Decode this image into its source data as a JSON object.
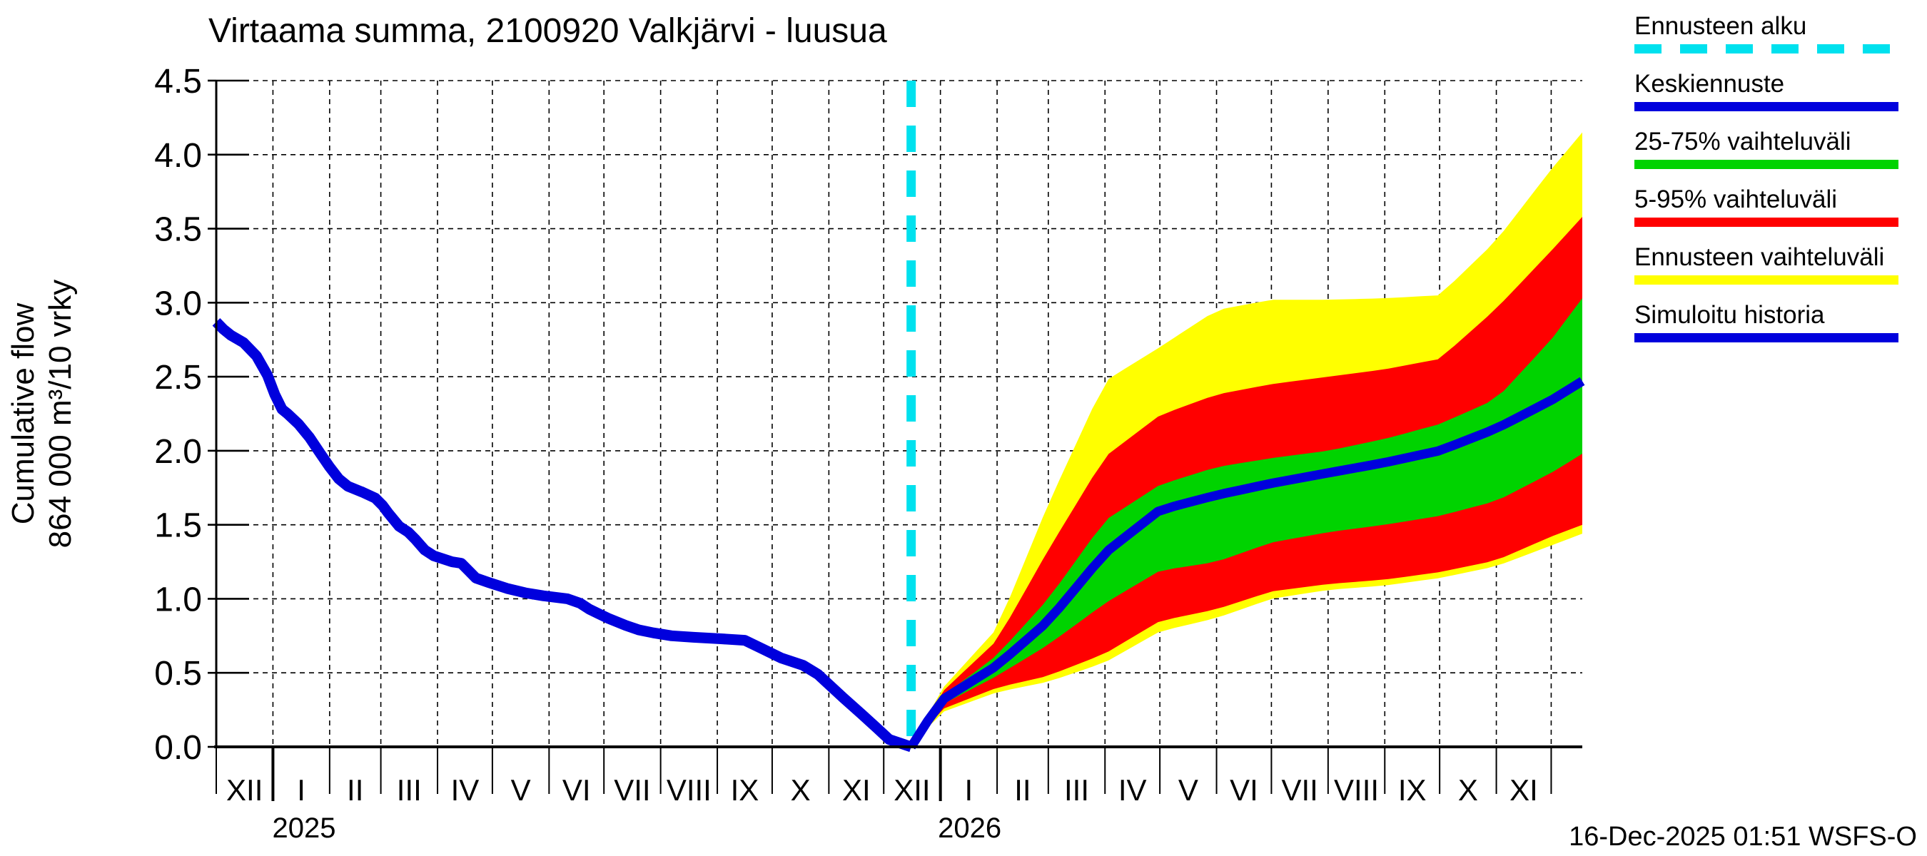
{
  "title": "Virtaama summa, 2100920 Valkjärvi - luusua",
  "y_axis_label_line1": "Cumulative flow",
  "y_axis_label_line2": "864 000 m³/10 vrky",
  "timestamp": "16-Dec-2025 01:51 WSFS-O",
  "colors": {
    "history_blue": "#0000dd",
    "median_blue": "#0000dd",
    "forecast_start_cyan": "#00e1ee",
    "band_25_75_green": "#00d300",
    "band_5_95_red": "#ff0000",
    "band_minmax_yellow": "#ffff00",
    "grid_black": "#000000"
  },
  "legend": {
    "items": [
      {
        "label": "Ennusteen alku",
        "color": "#00e1ee",
        "dashed": true
      },
      {
        "label": "Keskiennuste",
        "color": "#0000dd",
        "dashed": false
      },
      {
        "label": "25-75% vaihteluväli",
        "color": "#00d300",
        "dashed": false
      },
      {
        "label": "5-95% vaihteluväli",
        "color": "#ff0000",
        "dashed": false
      },
      {
        "label": "Ennusteen vaihteluväli",
        "color": "#ffff00",
        "dashed": false
      },
      {
        "label": "Simuloitu historia",
        "color": "#0000dd",
        "dashed": false
      }
    ]
  },
  "chart_data": {
    "type": "line",
    "title": "Virtaama summa, 2100920 Valkjärvi - luusua",
    "xlabel": "",
    "ylabel": "Cumulative flow 864 000 m³/10 vrky",
    "x_unit": "days since 2024-12-01",
    "xlim": [
      0,
      747
    ],
    "ylim": [
      0,
      4.5
    ],
    "grid": true,
    "legend_position": "top-right outside",
    "y_ticks": [
      0.0,
      0.5,
      1.0,
      1.5,
      2.0,
      2.5,
      3.0,
      3.5,
      4.0,
      4.5
    ],
    "month_boundaries": [
      0,
      31,
      62,
      90,
      121,
      151,
      182,
      212,
      243,
      274,
      304,
      335,
      365,
      396,
      427,
      455,
      486,
      516,
      547,
      577,
      608,
      639,
      669,
      700,
      730
    ],
    "month_labels": [
      "XII",
      "I",
      "II",
      "III",
      "IV",
      "V",
      "VI",
      "VII",
      "VIII",
      "IX",
      "X",
      "XI",
      "XII",
      "I",
      "II",
      "III",
      "IV",
      "V",
      "VI",
      "VII",
      "VIII",
      "IX",
      "X",
      "XI"
    ],
    "year_start_days": [
      31,
      396
    ],
    "year_labels": [
      {
        "text": "2025",
        "day": 48
      },
      {
        "text": "2026",
        "day": 412
      }
    ],
    "forecast_start_day": 380,
    "forecast_start_date": "16-Dec-2025",
    "series": [
      {
        "name": "Simuloitu historia",
        "style": "thick blue line",
        "points": [
          [
            0,
            2.87
          ],
          [
            4,
            2.82
          ],
          [
            8,
            2.78
          ],
          [
            15,
            2.73
          ],
          [
            22,
            2.64
          ],
          [
            28,
            2.51
          ],
          [
            32,
            2.38
          ],
          [
            36,
            2.28
          ],
          [
            39,
            2.25
          ],
          [
            45,
            2.18
          ],
          [
            51,
            2.09
          ],
          [
            57,
            1.98
          ],
          [
            62,
            1.89
          ],
          [
            67,
            1.81
          ],
          [
            72,
            1.76
          ],
          [
            80,
            1.72
          ],
          [
            87,
            1.68
          ],
          [
            91,
            1.63
          ],
          [
            94,
            1.58
          ],
          [
            100,
            1.49
          ],
          [
            105,
            1.45
          ],
          [
            109,
            1.4
          ],
          [
            114,
            1.33
          ],
          [
            119,
            1.29
          ],
          [
            129,
            1.25
          ],
          [
            134,
            1.24
          ],
          [
            138,
            1.19
          ],
          [
            142,
            1.14
          ],
          [
            149,
            1.11
          ],
          [
            159,
            1.07
          ],
          [
            169,
            1.04
          ],
          [
            179,
            1.02
          ],
          [
            192,
            1.0
          ],
          [
            199,
            0.97
          ],
          [
            204,
            0.93
          ],
          [
            209,
            0.9
          ],
          [
            214,
            0.87
          ],
          [
            224,
            0.82
          ],
          [
            231,
            0.79
          ],
          [
            239,
            0.77
          ],
          [
            249,
            0.75
          ],
          [
            261,
            0.74
          ],
          [
            276,
            0.73
          ],
          [
            289,
            0.72
          ],
          [
            299,
            0.66
          ],
          [
            309,
            0.6
          ],
          [
            321,
            0.55
          ],
          [
            329,
            0.49
          ],
          [
            336,
            0.41
          ],
          [
            343,
            0.33
          ],
          [
            353,
            0.22
          ],
          [
            361,
            0.13
          ],
          [
            368,
            0.05
          ],
          [
            380,
            0.0
          ]
        ]
      },
      {
        "name": "Keskiennuste",
        "style": "thick blue line (forecast median)",
        "days": [
          380,
          396,
          427,
          455,
          486,
          516,
          547,
          577,
          608,
          639,
          669,
          700,
          730,
          747
        ],
        "values": [
          0.0,
          0.31,
          0.55,
          0.85,
          1.31,
          1.6,
          1.7,
          1.78,
          1.85,
          1.92,
          2.0,
          2.15,
          2.34,
          2.47
        ]
      }
    ],
    "bands": {
      "days": [
        380,
        396,
        427,
        455,
        486,
        516,
        547,
        577,
        608,
        639,
        669,
        700,
        730,
        747
      ],
      "band_25_75": {
        "name": "25-75% vaihteluväli",
        "upper": [
          0.0,
          0.33,
          0.62,
          1.0,
          1.53,
          1.77,
          1.89,
          1.95,
          2.0,
          2.08,
          2.18,
          2.35,
          2.75,
          3.03
        ],
        "lower": [
          0.0,
          0.28,
          0.48,
          0.69,
          0.97,
          1.19,
          1.25,
          1.38,
          1.45,
          1.5,
          1.56,
          1.66,
          1.85,
          1.98
        ]
      },
      "band_5_95": {
        "name": "5-95% vaihteluväli",
        "upper": [
          0.0,
          0.36,
          0.72,
          1.33,
          1.96,
          2.24,
          2.38,
          2.45,
          2.5,
          2.55,
          2.62,
          2.96,
          3.35,
          3.58
        ],
        "lower": [
          0.0,
          0.25,
          0.4,
          0.48,
          0.63,
          0.85,
          0.93,
          1.05,
          1.1,
          1.13,
          1.18,
          1.26,
          1.42,
          1.5
        ]
      },
      "band_minmax": {
        "name": "Ennusteen vaihteluväli",
        "upper": [
          0.0,
          0.38,
          0.8,
          1.64,
          2.47,
          2.7,
          2.95,
          3.02,
          3.02,
          3.03,
          3.05,
          3.42,
          3.9,
          4.15
        ],
        "lower": [
          0.0,
          0.23,
          0.37,
          0.44,
          0.57,
          0.78,
          0.87,
          1.0,
          1.06,
          1.09,
          1.14,
          1.22,
          1.36,
          1.44
        ]
      }
    }
  }
}
